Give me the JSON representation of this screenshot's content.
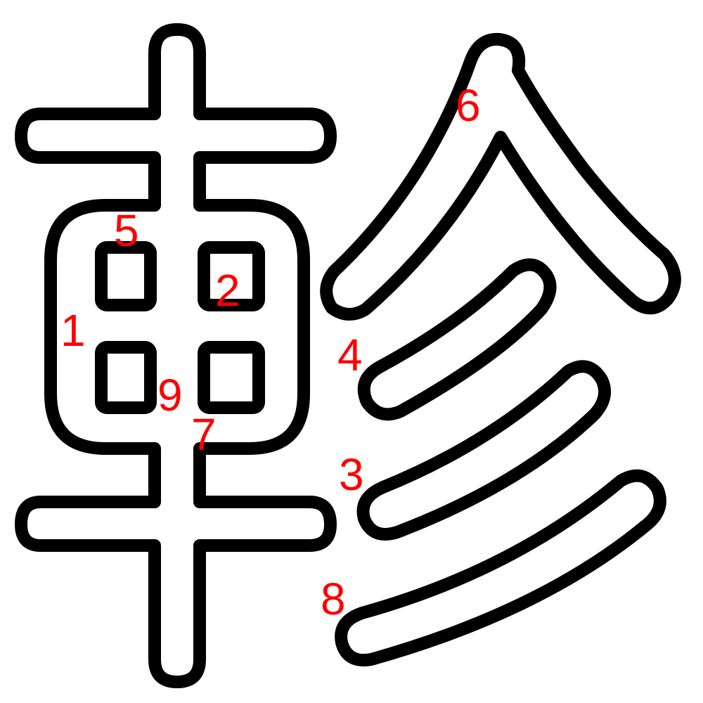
{
  "glyph": {
    "stroke_color": "#000000",
    "fill_color": "#ffffff",
    "label_color": "#ff0000"
  },
  "stroke_numbers": [
    "1",
    "2",
    "3",
    "4",
    "5",
    "6",
    "7",
    "8",
    "9"
  ]
}
